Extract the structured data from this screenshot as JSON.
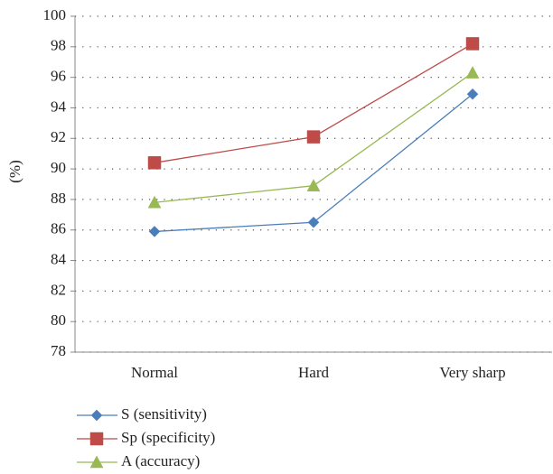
{
  "chart_data": {
    "type": "line",
    "y_label": "(%)",
    "categories": [
      "Normal",
      "Hard",
      "Very sharp"
    ],
    "series": [
      {
        "name": "S (sensitivity)",
        "color": "#4a7ebb",
        "marker": "diamond",
        "values": [
          85.9,
          86.5,
          94.9
        ]
      },
      {
        "name": "Sp (specificity)",
        "color": "#be4b48",
        "marker": "square",
        "values": [
          90.4,
          92.1,
          98.2
        ]
      },
      {
        "name": "A (accuracy)",
        "color": "#98b954",
        "marker": "triangle",
        "values": [
          87.8,
          88.9,
          96.3
        ]
      }
    ],
    "ylim": [
      78,
      100
    ],
    "yticks": [
      78,
      80,
      82,
      84,
      86,
      88,
      90,
      92,
      94,
      96,
      98,
      100
    ],
    "grid": true,
    "legend": "bottom-left"
  }
}
